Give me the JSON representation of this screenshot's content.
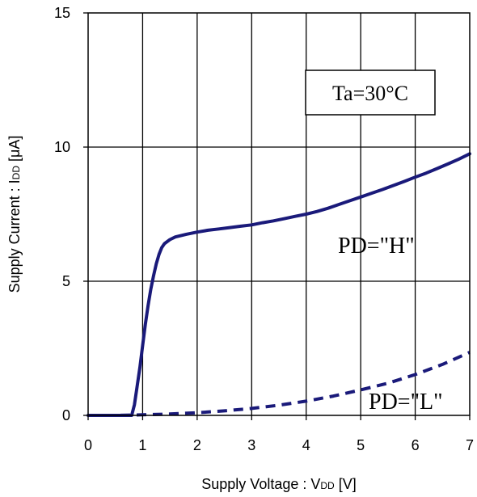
{
  "chart_data": {
    "type": "line",
    "title": "",
    "xlabel": "Supply Voltage : V",
    "xlabel_sub": "DD",
    "xlabel_unit": " [V]",
    "ylabel": "Supply Current : I",
    "ylabel_sub": "DD",
    "ylabel_unit": " [μA]",
    "xlim": [
      0,
      7
    ],
    "ylim": [
      0,
      15
    ],
    "x_ticks": [
      0,
      1,
      2,
      3,
      4,
      5,
      6,
      7
    ],
    "y_ticks": [
      0,
      5,
      10,
      15
    ],
    "x_tick_labels": [
      "0",
      "1",
      "2",
      "3",
      "4",
      "5",
      "6",
      "7"
    ],
    "y_tick_labels": [
      "0",
      "5",
      "10",
      "15"
    ],
    "grid": true,
    "annotation": "Ta=30°C",
    "series": [
      {
        "name": "PD=\"H\"",
        "style": "solid",
        "color": "#1a1a7a",
        "x": [
          0,
          0.8,
          0.85,
          0.9,
          0.95,
          1.0,
          1.05,
          1.1,
          1.15,
          1.2,
          1.25,
          1.3,
          1.35,
          1.4,
          1.5,
          1.6,
          1.8,
          2.0,
          2.2,
          2.4,
          2.6,
          2.8,
          3.0,
          3.2,
          3.4,
          3.6,
          3.8,
          4.0,
          4.2,
          4.4,
          4.6,
          4.8,
          5.0,
          5.2,
          5.4,
          5.6,
          5.8,
          6.0,
          6.2,
          6.4,
          6.6,
          6.8,
          7.0
        ],
        "y": [
          0,
          0,
          0.4,
          1.1,
          1.8,
          2.6,
          3.4,
          4.1,
          4.7,
          5.2,
          5.65,
          6.0,
          6.25,
          6.4,
          6.55,
          6.65,
          6.75,
          6.83,
          6.9,
          6.95,
          7.0,
          7.05,
          7.1,
          7.18,
          7.25,
          7.33,
          7.42,
          7.5,
          7.6,
          7.72,
          7.86,
          8.0,
          8.14,
          8.28,
          8.42,
          8.57,
          8.72,
          8.88,
          9.03,
          9.2,
          9.37,
          9.55,
          9.75
        ]
      },
      {
        "name": "PD=\"L\"",
        "style": "dashed",
        "color": "#1a1a7a",
        "x": [
          0,
          0.5,
          1.0,
          1.5,
          2.0,
          2.5,
          3.0,
          3.5,
          4.0,
          4.5,
          5.0,
          5.5,
          6.0,
          6.5,
          7.0
        ],
        "y": [
          0,
          0,
          0.02,
          0.05,
          0.1,
          0.17,
          0.26,
          0.38,
          0.53,
          0.72,
          0.95,
          1.2,
          1.52,
          1.9,
          2.35
        ]
      }
    ]
  }
}
